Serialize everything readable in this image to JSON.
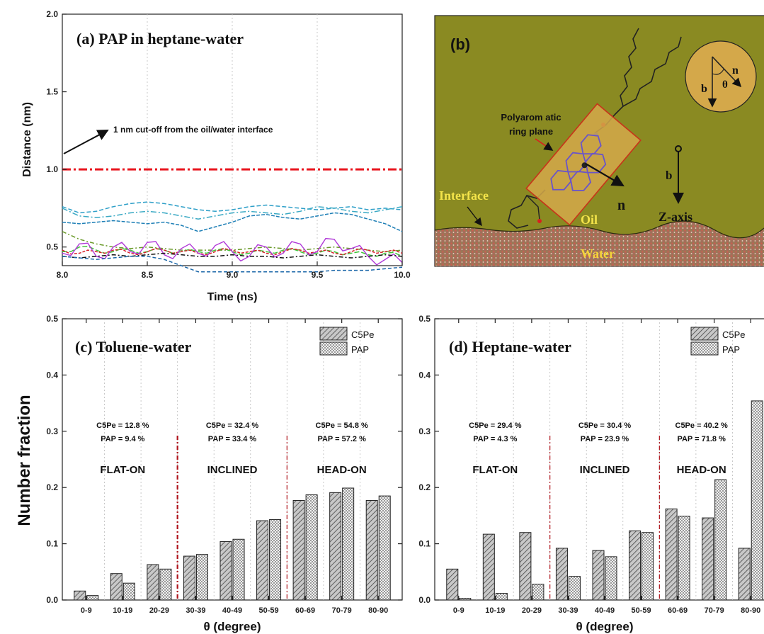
{
  "chart_data": [
    {
      "panel": "a",
      "type": "line",
      "title": "(a) PAP in heptane-water",
      "xlabel": "Time (ns)",
      "ylabel": "Distance (nm)",
      "xlim": [
        8.0,
        10.0
      ],
      "ylim": [
        0.38,
        2.0
      ],
      "xticks": [
        "8.0",
        "8.5",
        "9.0",
        "9.5",
        "10.0"
      ],
      "yticks": [
        {
          "value": 0.5,
          "label": "0.5"
        },
        {
          "value": 1.0,
          "label": "1.0"
        },
        {
          "value": 1.5,
          "label": "1.5"
        },
        {
          "value": 2.0,
          "label": "2.0"
        }
      ],
      "cutoff": {
        "value": 1.0,
        "color": "#e8141c"
      },
      "annotation": "1 nm cut-off from the oil/water interface",
      "x": [
        8.0,
        8.1,
        8.2,
        8.3,
        8.4,
        8.5,
        8.6,
        8.7,
        8.8,
        8.9,
        9.0,
        9.1,
        9.2,
        9.3,
        9.4,
        9.5,
        9.6,
        9.7,
        9.8,
        9.9,
        10.0
      ],
      "series": [
        {
          "color": "#2e9fc8",
          "values": [
            0.76,
            0.72,
            0.73,
            0.76,
            0.78,
            0.79,
            0.78,
            0.76,
            0.74,
            0.73,
            0.74,
            0.76,
            0.77,
            0.76,
            0.75,
            0.74,
            0.75,
            0.76,
            0.74,
            0.75,
            0.74
          ]
        },
        {
          "color": "#3aa9c4",
          "values": [
            0.75,
            0.7,
            0.69,
            0.7,
            0.72,
            0.73,
            0.72,
            0.7,
            0.68,
            0.7,
            0.72,
            0.73,
            0.72,
            0.71,
            0.73,
            0.76,
            0.75,
            0.73,
            0.72,
            0.74,
            0.76
          ]
        },
        {
          "color": "#1e7fb6",
          "values": [
            0.66,
            0.65,
            0.66,
            0.67,
            0.66,
            0.65,
            0.66,
            0.64,
            0.6,
            0.63,
            0.66,
            0.7,
            0.71,
            0.69,
            0.68,
            0.7,
            0.72,
            0.71,
            0.68,
            0.65,
            0.6
          ]
        },
        {
          "color": "#6a9a2a",
          "values": [
            0.6,
            0.55,
            0.52,
            0.5,
            0.49,
            0.5,
            0.49,
            0.48,
            0.48,
            0.48,
            0.48,
            0.49,
            0.5,
            0.49,
            0.48,
            0.49,
            0.5,
            0.49,
            0.48,
            0.47,
            0.48
          ]
        },
        {
          "color": "#3fc43a",
          "values": [
            0.47,
            0.5,
            0.48,
            0.47,
            0.48,
            0.47,
            0.48,
            0.47,
            0.47,
            0.48,
            0.47,
            0.46,
            0.47,
            0.48,
            0.47,
            0.46,
            0.47,
            0.46,
            0.45,
            0.46,
            0.44
          ]
        },
        {
          "color": "#d8202a",
          "values": [
            0.48,
            0.46,
            0.47,
            0.48,
            0.46,
            0.47,
            0.48,
            0.47,
            0.46,
            0.47,
            0.48,
            0.47,
            0.46,
            0.47,
            0.48,
            0.47,
            0.46,
            0.47,
            0.48,
            0.47,
            0.46
          ]
        },
        {
          "color": "#b038d8",
          "values": [
            0.46,
            0.52,
            0.44,
            0.5,
            0.47,
            0.53,
            0.45,
            0.49,
            0.46,
            0.51,
            0.47,
            0.44,
            0.5,
            0.46,
            0.52,
            0.47,
            0.55,
            0.49,
            0.44,
            0.42,
            0.4
          ]
        },
        {
          "color": "#111111",
          "values": [
            0.44,
            0.43,
            0.44,
            0.45,
            0.44,
            0.45,
            0.46,
            0.45,
            0.44,
            0.44,
            0.45,
            0.44,
            0.44,
            0.43,
            0.44,
            0.45,
            0.44,
            0.43,
            0.44,
            0.45,
            0.44
          ]
        },
        {
          "color": "#1a66a8",
          "values": [
            0.44,
            0.43,
            0.42,
            0.43,
            0.44,
            0.44,
            0.42,
            0.38,
            0.34,
            0.34,
            0.34,
            0.34,
            0.34,
            0.34,
            0.34,
            0.34,
            0.35,
            0.35,
            0.35,
            0.36,
            0.37
          ]
        }
      ]
    },
    {
      "panel": "c",
      "type": "bar",
      "title": "(c)  Toluene-water",
      "xlabel": "θ (degree)",
      "ylabel": "Number fraction",
      "ylim": [
        0,
        0.5
      ],
      "yticks": [
        "0.0",
        "0.1",
        "0.2",
        "0.3",
        "0.4",
        "0.5"
      ],
      "categories": [
        "0-9",
        "10-19",
        "20-29",
        "30-39",
        "40-49",
        "50-59",
        "60-69",
        "70-79",
        "80-90"
      ],
      "series": [
        {
          "name": "C5Pe",
          "values": [
            0.016,
            0.047,
            0.063,
            0.078,
            0.104,
            0.141,
            0.177,
            0.191,
            0.177
          ]
        },
        {
          "name": "PAP",
          "values": [
            0.008,
            0.03,
            0.055,
            0.081,
            0.108,
            0.143,
            0.187,
            0.199,
            0.185
          ]
        }
      ],
      "regions": [
        {
          "label": "FLAT-ON",
          "c5pe": "C5Pe = 12.8 %",
          "pap": "PAP  = 9.4 %"
        },
        {
          "label": "INCLINED",
          "c5pe": "C5Pe = 32.4 %",
          "pap": "PAP   = 33.4 %"
        },
        {
          "label": "HEAD-ON",
          "c5pe": "C5Pe = 54.8 %",
          "pap": "PAP   = 57.2 %"
        }
      ]
    },
    {
      "panel": "d",
      "type": "bar",
      "title": "(d)  Heptane-water",
      "xlabel": "θ (degree)",
      "ylim": [
        0,
        0.5
      ],
      "yticks": [
        "0.0",
        "0.1",
        "0.2",
        "0.3",
        "0.4",
        "0.5"
      ],
      "categories": [
        "0-9",
        "10-19",
        "20-29",
        "30-39",
        "40-49",
        "50-59",
        "60-69",
        "70-79",
        "80-90"
      ],
      "series": [
        {
          "name": "C5Pe",
          "values": [
            0.055,
            0.117,
            0.12,
            0.092,
            0.088,
            0.123,
            0.162,
            0.146,
            0.092
          ]
        },
        {
          "name": "PAP",
          "values": [
            0.003,
            0.012,
            0.028,
            0.042,
            0.077,
            0.12,
            0.149,
            0.214,
            0.354
          ]
        }
      ],
      "regions": [
        {
          "label": "FLAT-ON",
          "c5pe": "C5Pe = 29.4 %",
          "pap": "PAP  = 4.3 %"
        },
        {
          "label": "INCLINED",
          "c5pe": "C5Pe = 30.4 %",
          "pap": "PAP   = 23.9 %"
        },
        {
          "label": "HEAD-ON",
          "c5pe": "C5Pe = 40.2 %",
          "pap": "PAP   = 71.8 %"
        }
      ]
    }
  ],
  "schematic": {
    "label": "(b)",
    "ring_label_1": "Polyarom atic",
    "ring_label_2": "ring plane",
    "interface": "Interface",
    "oil": "Oil",
    "water": "Water",
    "z_axis": "Z-axis",
    "b": "b",
    "n": "n",
    "theta": "θ",
    "colors": {
      "background": "#8a8a22",
      "water": "#9c6a50",
      "ring": "#d4a84a",
      "interface_label": "#f4e44a"
    }
  }
}
